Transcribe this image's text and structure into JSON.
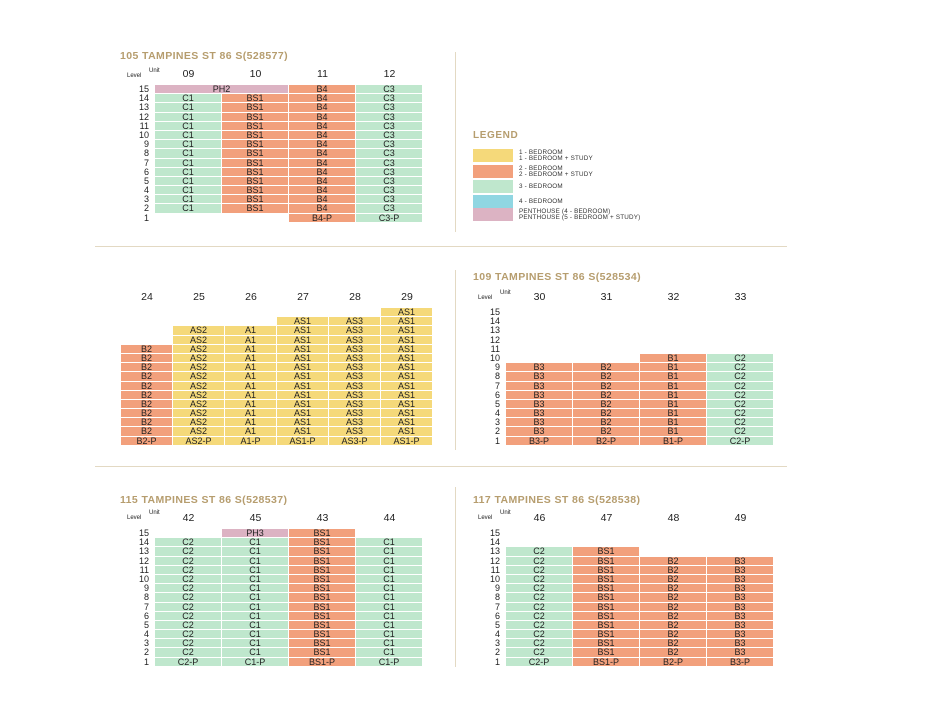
{
  "legend": {
    "title": "LEGEND",
    "rows": [
      {
        "line1": "1 - BEDROOM",
        "line2": "1 - BEDROOM + STUDY",
        "color": "#f5d97a"
      },
      {
        "line1": "2 - BEDROOM",
        "line2": "2 - BEDROOM + STUDY",
        "color": "#f2a07c"
      },
      {
        "line1": "3 - BEDROOM",
        "line2": "",
        "color": "#bfe7cd"
      },
      {
        "line1": "4 - BEDROOM",
        "line2": "",
        "color": "#90d6e2"
      },
      {
        "line1": "PENTHOUSE (4 - BEDROOM)",
        "line2": "PENTHOUSE (5 - BEDROOM + STUDY)",
        "color": "#dcb3c3"
      }
    ]
  },
  "labels": {
    "level": "Level",
    "unit": "Unit"
  },
  "blocks": [
    {
      "title": "105 TAMPINES ST 86 S(528577)",
      "units": [
        "09",
        "10",
        "11",
        "12"
      ],
      "levels": [
        "15",
        "14",
        "13",
        "12",
        "11",
        "10",
        "9",
        "8",
        "7",
        "6",
        "5",
        "4",
        "3",
        "2",
        "1"
      ],
      "rows": [
        [
          "PH2",
          "PH2",
          "B4",
          "C3"
        ],
        [
          "C1",
          "BS1",
          "B4",
          "C3"
        ],
        [
          "C1",
          "BS1",
          "B4",
          "C3"
        ],
        [
          "C1",
          "BS1",
          "B4",
          "C3"
        ],
        [
          "C1",
          "BS1",
          "B4",
          "C3"
        ],
        [
          "C1",
          "BS1",
          "B4",
          "C3"
        ],
        [
          "C1",
          "BS1",
          "B4",
          "C3"
        ],
        [
          "C1",
          "BS1",
          "B4",
          "C3"
        ],
        [
          "C1",
          "BS1",
          "B4",
          "C3"
        ],
        [
          "C1",
          "BS1",
          "B4",
          "C3"
        ],
        [
          "C1",
          "BS1",
          "B4",
          "C3"
        ],
        [
          "C1",
          "BS1",
          "B4",
          "C3"
        ],
        [
          "C1",
          "BS1",
          "B4",
          "C3"
        ],
        [
          "C1",
          "BS1",
          "B4",
          "C3"
        ],
        [
          "",
          "",
          "B4-P",
          "C3-P"
        ]
      ]
    },
    {
      "title": "",
      "units": [
        "24",
        "25",
        "26",
        "27",
        "28",
        "29"
      ],
      "rows": [
        [
          "",
          "",
          "",
          "",
          "",
          "AS1"
        ],
        [
          "",
          "",
          "",
          "AS1",
          "AS3",
          "AS1"
        ],
        [
          "",
          "AS2",
          "A1",
          "AS1",
          "AS3",
          "AS1"
        ],
        [
          "",
          "AS2",
          "A1",
          "AS1",
          "AS3",
          "AS1"
        ],
        [
          "B2",
          "AS2",
          "A1",
          "AS1",
          "AS3",
          "AS1"
        ],
        [
          "B2",
          "AS2",
          "A1",
          "AS1",
          "AS3",
          "AS1"
        ],
        [
          "B2",
          "AS2",
          "A1",
          "AS1",
          "AS3",
          "AS1"
        ],
        [
          "B2",
          "AS2",
          "A1",
          "AS1",
          "AS3",
          "AS1"
        ],
        [
          "B2",
          "AS2",
          "A1",
          "AS1",
          "AS3",
          "AS1"
        ],
        [
          "B2",
          "AS2",
          "A1",
          "AS1",
          "AS3",
          "AS1"
        ],
        [
          "B2",
          "AS2",
          "A1",
          "AS1",
          "AS3",
          "AS1"
        ],
        [
          "B2",
          "AS2",
          "A1",
          "AS1",
          "AS3",
          "AS1"
        ],
        [
          "B2",
          "AS2",
          "A1",
          "AS1",
          "AS3",
          "AS1"
        ],
        [
          "B2",
          "AS2",
          "A1",
          "AS1",
          "AS3",
          "AS1"
        ],
        [
          "B2-P",
          "AS2-P",
          "A1-P",
          "AS1-P",
          "AS3-P",
          "AS1-P"
        ]
      ]
    },
    {
      "title": "109 TAMPINES ST 86 S(528534)",
      "units": [
        "30",
        "31",
        "32",
        "33"
      ],
      "levels": [
        "15",
        "14",
        "13",
        "12",
        "11",
        "10",
        "9",
        "8",
        "7",
        "6",
        "5",
        "4",
        "3",
        "2",
        "1"
      ],
      "rows": [
        [
          "",
          "",
          "",
          ""
        ],
        [
          "",
          "",
          "",
          ""
        ],
        [
          "",
          "",
          "",
          ""
        ],
        [
          "",
          "",
          "",
          ""
        ],
        [
          "",
          "",
          "",
          ""
        ],
        [
          "",
          "",
          "B1",
          "C2"
        ],
        [
          "B3",
          "B2",
          "B1",
          "C2"
        ],
        [
          "B3",
          "B2",
          "B1",
          "C2"
        ],
        [
          "B3",
          "B2",
          "B1",
          "C2"
        ],
        [
          "B3",
          "B2",
          "B1",
          "C2"
        ],
        [
          "B3",
          "B2",
          "B1",
          "C2"
        ],
        [
          "B3",
          "B2",
          "B1",
          "C2"
        ],
        [
          "B3",
          "B2",
          "B1",
          "C2"
        ],
        [
          "B3",
          "B2",
          "B1",
          "C2"
        ],
        [
          "B3-P",
          "B2-P",
          "B1-P",
          "C2-P"
        ]
      ]
    },
    {
      "title": "115 TAMPINES ST 86 S(528537)",
      "units": [
        "42",
        "45",
        "43",
        "44"
      ],
      "levels": [
        "15",
        "14",
        "13",
        "12",
        "11",
        "10",
        "9",
        "8",
        "7",
        "6",
        "5",
        "4",
        "3",
        "2",
        "1"
      ],
      "rows": [
        [
          "",
          "PH3",
          "BS1",
          ""
        ],
        [
          "C2",
          "C1",
          "BS1",
          "C1"
        ],
        [
          "C2",
          "C1",
          "BS1",
          "C1"
        ],
        [
          "C2",
          "C1",
          "BS1",
          "C1"
        ],
        [
          "C2",
          "C1",
          "BS1",
          "C1"
        ],
        [
          "C2",
          "C1",
          "BS1",
          "C1"
        ],
        [
          "C2",
          "C1",
          "BS1",
          "C1"
        ],
        [
          "C2",
          "C1",
          "BS1",
          "C1"
        ],
        [
          "C2",
          "C1",
          "BS1",
          "C1"
        ],
        [
          "C2",
          "C1",
          "BS1",
          "C1"
        ],
        [
          "C2",
          "C1",
          "BS1",
          "C1"
        ],
        [
          "C2",
          "C1",
          "BS1",
          "C1"
        ],
        [
          "C2",
          "C1",
          "BS1",
          "C1"
        ],
        [
          "C2",
          "C1",
          "BS1",
          "C1"
        ],
        [
          "C2-P",
          "C1-P",
          "BS1-P",
          "C1-P"
        ]
      ]
    },
    {
      "title": "117 TAMPINES ST 86 S(528538)",
      "units": [
        "46",
        "47",
        "48",
        "49"
      ],
      "levels": [
        "15",
        "14",
        "13",
        "12",
        "11",
        "10",
        "9",
        "8",
        "7",
        "6",
        "5",
        "4",
        "3",
        "2",
        "1"
      ],
      "rows": [
        [
          "",
          "",
          "",
          ""
        ],
        [
          "",
          "",
          "",
          ""
        ],
        [
          "C2",
          "BS1",
          "",
          ""
        ],
        [
          "C2",
          "BS1",
          "B2",
          "B3"
        ],
        [
          "C2",
          "BS1",
          "B2",
          "B3"
        ],
        [
          "C2",
          "BS1",
          "B2",
          "B3"
        ],
        [
          "C2",
          "BS1",
          "B2",
          "B3"
        ],
        [
          "C2",
          "BS1",
          "B2",
          "B3"
        ],
        [
          "C2",
          "BS1",
          "B2",
          "B3"
        ],
        [
          "C2",
          "BS1",
          "B2",
          "B3"
        ],
        [
          "C2",
          "BS1",
          "B2",
          "B3"
        ],
        [
          "C2",
          "BS1",
          "B2",
          "B3"
        ],
        [
          "C2",
          "BS1",
          "B2",
          "B3"
        ],
        [
          "C2",
          "BS1",
          "B2",
          "B3"
        ],
        [
          "C2-P",
          "BS1-P",
          "B2-P",
          "B3-P"
        ]
      ]
    }
  ]
}
